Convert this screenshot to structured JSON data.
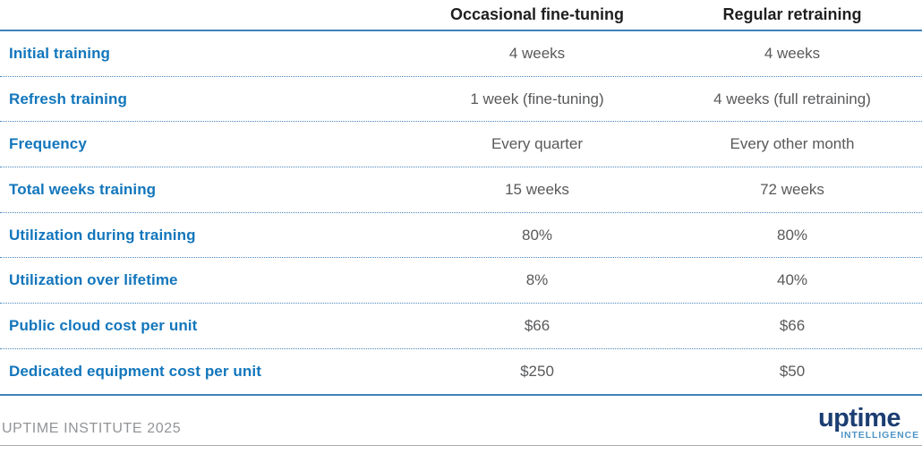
{
  "table": {
    "columns": [
      "",
      "Occasional fine-tuning",
      "Regular retraining"
    ],
    "rows": [
      {
        "label": "Initial training",
        "values": [
          "4 weeks",
          "4 weeks"
        ]
      },
      {
        "label": "Refresh training",
        "values": [
          "1 week (fine-tuning)",
          "4 weeks (full retraining)"
        ]
      },
      {
        "label": "Frequency",
        "values": [
          "Every quarter",
          "Every other month"
        ]
      },
      {
        "label": "Total weeks training",
        "values": [
          "15 weeks",
          "72 weeks"
        ]
      },
      {
        "label": "Utilization during training",
        "values": [
          "80%",
          "80%"
        ]
      },
      {
        "label": "Utilization over lifetime",
        "values": [
          "8%",
          "40%"
        ]
      },
      {
        "label": "Public cloud cost per unit",
        "values": [
          "$66",
          "$66"
        ]
      },
      {
        "label": "Dedicated equipment cost per unit",
        "values": [
          "$250",
          "$50"
        ]
      }
    ]
  },
  "footer": {
    "source": "UPTIME INSTITUTE 2025"
  },
  "logo": {
    "wordmark": "uptime",
    "subtitle": "INTELLIGENCE"
  },
  "colors": {
    "row_label_blue": "#1276bc",
    "rule_blue": "#3f81b9",
    "dotted_rule_blue": "#4a86bb",
    "header_text": "#1f1f21",
    "value_gray": "#58595b",
    "footer_gray": "#929497",
    "footer_rule_gray": "#a9abae",
    "logo_navy": "#1c3e72",
    "logo_light_blue": "#4f95c5"
  },
  "chart_data": {
    "type": "table",
    "title": "",
    "columns": [
      "",
      "Occasional fine-tuning",
      "Regular retraining"
    ],
    "rows": [
      [
        "Initial training",
        "4 weeks",
        "4 weeks"
      ],
      [
        "Refresh training",
        "1 week (fine-tuning)",
        "4 weeks (full retraining)"
      ],
      [
        "Frequency",
        "Every quarter",
        "Every other month"
      ],
      [
        "Total weeks training",
        "15 weeks",
        "72 weeks"
      ],
      [
        "Utilization during training",
        "80%",
        "80%"
      ],
      [
        "Utilization over lifetime",
        "8%",
        "40%"
      ],
      [
        "Public cloud cost per unit",
        "$66",
        "$66"
      ],
      [
        "Dedicated equipment cost per unit",
        "$250",
        "$50"
      ]
    ],
    "layout_hints": {
      "label_column_align": "left",
      "value_columns_align": "center",
      "row_separator": "dotted-blue",
      "header_separator": "solid-blue",
      "source_line": "UPTIME INSTITUTE 2025"
    }
  }
}
